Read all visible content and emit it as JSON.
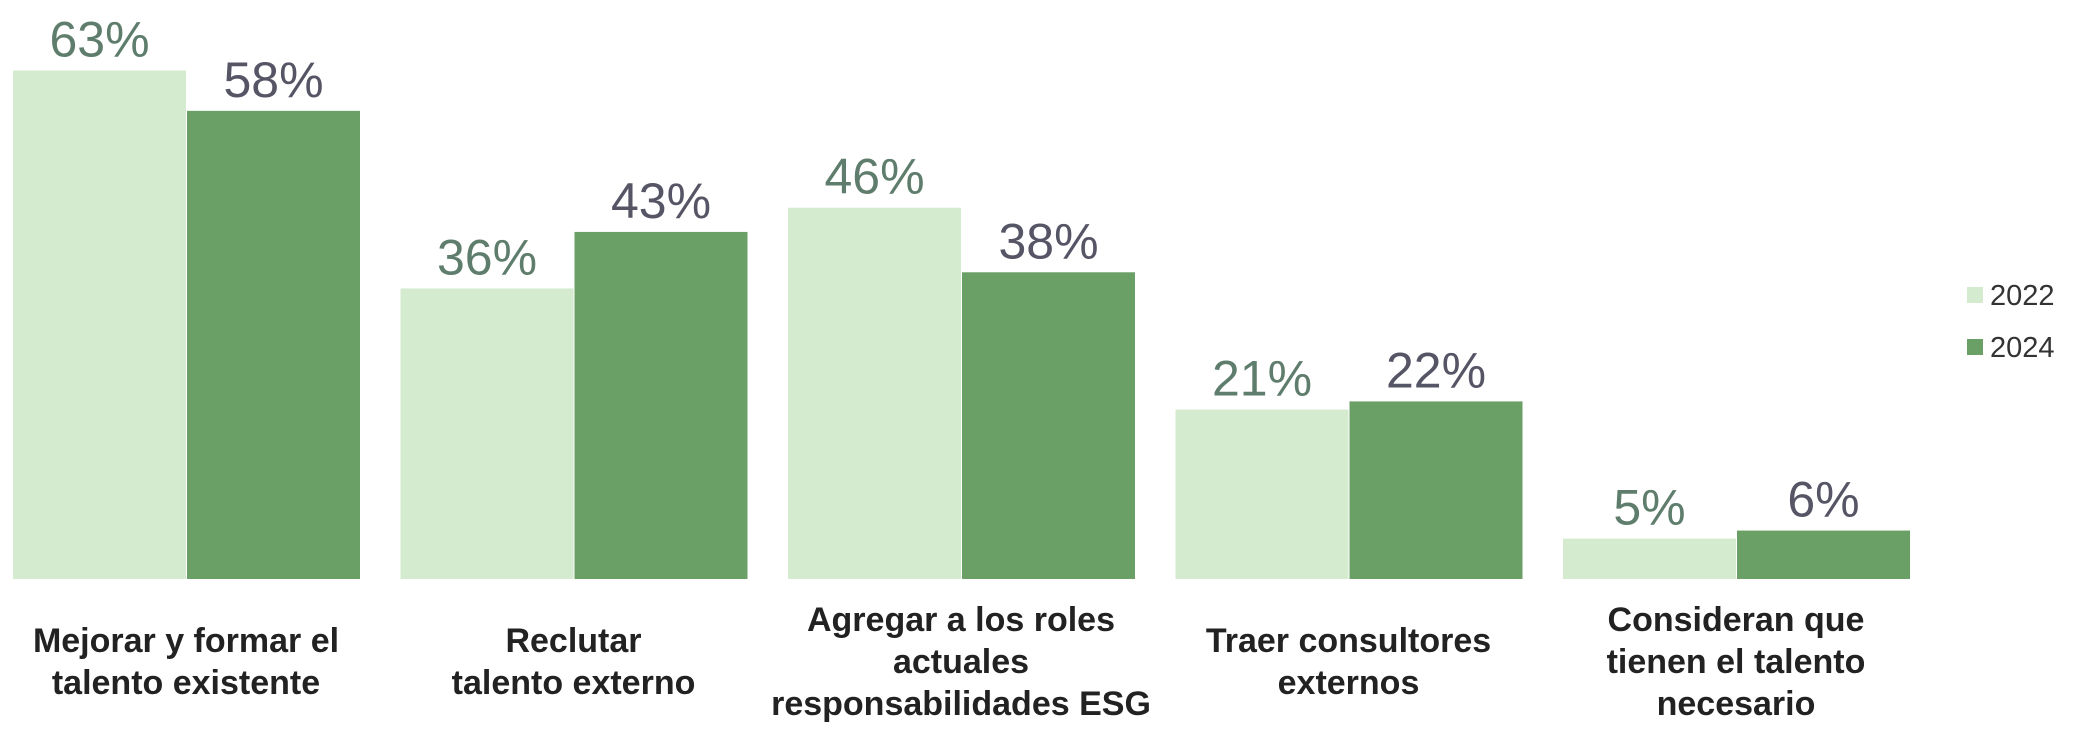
{
  "chart_data": {
    "type": "bar",
    "categories": [
      "Mejorar y formar el\ntalento existente",
      "Reclutar\ntalento externo",
      "Agregar a los roles\nactuales\nresponsabilidades ESG",
      "Traer consultores\nexternos",
      "Consideran que\ntienen el talento\nnecesario"
    ],
    "series": [
      {
        "name": "2022",
        "color": "#d4ebd0",
        "label_color": "#5f7d6c",
        "values": [
          63,
          36,
          46,
          21,
          5
        ],
        "value_labels": [
          "63%",
          "36%",
          "46%",
          "21%",
          "5%"
        ]
      },
      {
        "name": "2024",
        "color": "#6a9f65",
        "label_color": "#555566",
        "values": [
          58,
          43,
          38,
          22,
          6
        ],
        "value_labels": [
          "58%",
          "43%",
          "38%",
          "22%",
          "6%"
        ]
      }
    ],
    "ylim": [
      0,
      70
    ],
    "legend": "right"
  }
}
